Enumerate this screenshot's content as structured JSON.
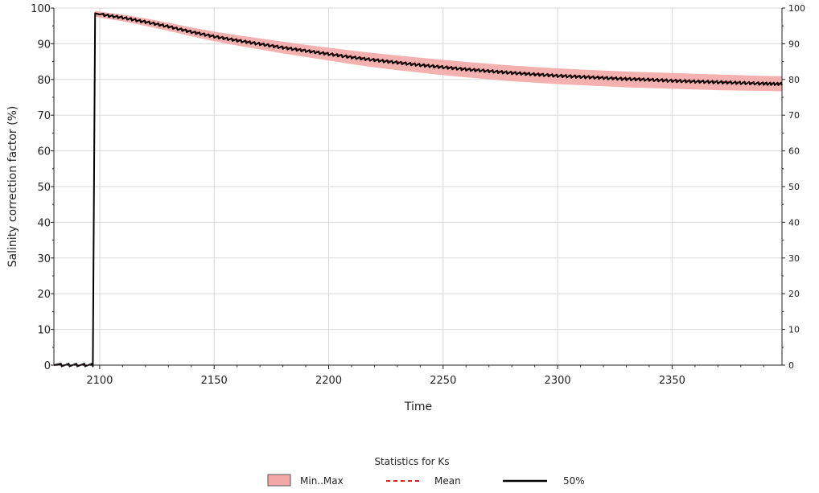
{
  "chart_data": {
    "type": "area",
    "title": "",
    "xlabel": "Time",
    "ylabel": "Salinity correction factor (%)",
    "xlim": [
      2080,
      2398
    ],
    "ylim": [
      0,
      100
    ],
    "x_ticks": [
      2100,
      2150,
      2200,
      2250,
      2300,
      2350
    ],
    "y_ticks": [
      0,
      10,
      20,
      30,
      40,
      50,
      60,
      70,
      80,
      90,
      100
    ],
    "grid": true,
    "legend": {
      "title": "Statistics for Ks",
      "placement": "bottom-center",
      "entries": [
        "Min..Max",
        "Mean",
        "50%"
      ]
    },
    "colors": {
      "band": "#f4a7a7",
      "mean": "#e0202a",
      "median": "#000000",
      "grid": "#d9d9d9"
    },
    "series": [
      {
        "name": "50%",
        "x": [
          2080,
          2097,
          2098,
          2100,
          2110,
          2120,
          2130,
          2140,
          2150,
          2160,
          2170,
          2180,
          2190,
          2200,
          2210,
          2220,
          2230,
          2240,
          2250,
          2260,
          2270,
          2280,
          2290,
          2300,
          2310,
          2320,
          2330,
          2340,
          2350,
          2360,
          2370,
          2380,
          2390,
          2398
        ],
        "y": [
          0,
          0,
          98.5,
          98.2,
          97.3,
          96.1,
          94.8,
          93.3,
          92.0,
          90.9,
          89.9,
          88.9,
          88.0,
          87.1,
          86.2,
          85.4,
          84.7,
          84.0,
          83.4,
          82.8,
          82.3,
          81.8,
          81.4,
          81.0,
          80.7,
          80.4,
          80.1,
          79.9,
          79.6,
          79.4,
          79.2,
          79.0,
          78.8,
          78.7
        ]
      },
      {
        "name": "Mean",
        "x": [
          2080,
          2097,
          2098,
          2100,
          2110,
          2120,
          2130,
          2140,
          2150,
          2160,
          2170,
          2180,
          2190,
          2200,
          2210,
          2220,
          2230,
          2240,
          2250,
          2260,
          2270,
          2280,
          2290,
          2300,
          2310,
          2320,
          2330,
          2340,
          2350,
          2360,
          2370,
          2380,
          2390,
          2398
        ],
        "y": [
          0,
          0,
          98.6,
          98.3,
          97.4,
          96.2,
          94.9,
          93.5,
          92.2,
          91.1,
          90.1,
          89.1,
          88.2,
          87.3,
          86.4,
          85.6,
          84.9,
          84.2,
          83.6,
          83.0,
          82.5,
          82.0,
          81.6,
          81.2,
          80.9,
          80.6,
          80.3,
          80.1,
          79.8,
          79.6,
          79.4,
          79.2,
          79.0,
          78.9
        ]
      },
      {
        "name": "Min..Max",
        "x": [
          2080,
          2097,
          2098,
          2100,
          2110,
          2120,
          2130,
          2140,
          2150,
          2160,
          2170,
          2180,
          2190,
          2200,
          2210,
          2220,
          2230,
          2240,
          2250,
          2260,
          2270,
          2280,
          2290,
          2300,
          2310,
          2320,
          2330,
          2340,
          2350,
          2360,
          2370,
          2380,
          2390,
          2398
        ],
        "min": [
          0,
          0,
          97.6,
          97.3,
          96.3,
          95.0,
          93.6,
          92.1,
          90.7,
          89.5,
          88.4,
          87.3,
          86.3,
          85.3,
          84.3,
          83.4,
          82.6,
          81.9,
          81.2,
          80.6,
          80.0,
          79.5,
          79.1,
          78.7,
          78.4,
          78.1,
          77.8,
          77.6,
          77.4,
          77.2,
          77.0,
          76.9,
          76.8,
          76.7
        ],
        "max": [
          0,
          0,
          99.3,
          99.0,
          98.2,
          97.1,
          95.9,
          94.6,
          93.4,
          92.4,
          91.5,
          90.6,
          89.7,
          88.9,
          88.1,
          87.4,
          86.7,
          86.1,
          85.5,
          84.9,
          84.4,
          83.9,
          83.5,
          83.1,
          82.8,
          82.5,
          82.2,
          82.0,
          81.8,
          81.6,
          81.4,
          81.2,
          81.0,
          80.9
        ]
      }
    ]
  }
}
